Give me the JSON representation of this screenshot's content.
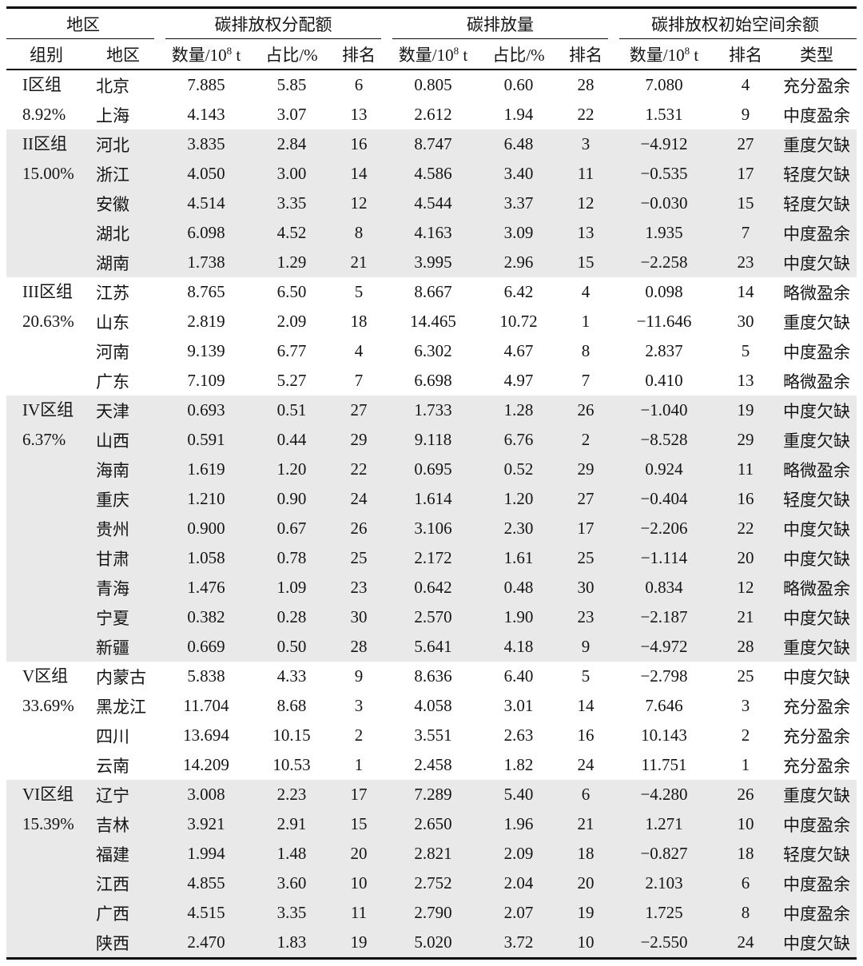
{
  "colors": {
    "band_background": "#e9e9e9",
    "rule": "#0a0a0a",
    "text": "#151515"
  },
  "header": {
    "top": {
      "region_group": "地区",
      "allocation": "碳排放权分配额",
      "emission": "碳排放量",
      "initial_space_balance": "碳排放权初始空间余额"
    },
    "sub": {
      "group": "组别",
      "region": "地区",
      "qty_prefix": "数量/10",
      "qty_sup": "8",
      "qty_unit": " t",
      "share": "占比/%",
      "rank": "排名",
      "type": "类型"
    }
  },
  "table": {
    "groups": [
      {
        "name": "I区组",
        "pct": "8.92%",
        "shaded": false,
        "rows": [
          {
            "region": "北京",
            "alloc": [
              "7.885",
              "5.85",
              "6"
            ],
            "emis": [
              "0.805",
              "0.60",
              "28"
            ],
            "balance": [
              "7.080",
              "4",
              "充分盈余"
            ]
          },
          {
            "region": "上海",
            "alloc": [
              "4.143",
              "3.07",
              "13"
            ],
            "emis": [
              "2.612",
              "1.94",
              "22"
            ],
            "balance": [
              "1.531",
              "9",
              "中度盈余"
            ]
          }
        ]
      },
      {
        "name": "II区组",
        "pct": "15.00%",
        "shaded": true,
        "rows": [
          {
            "region": "河北",
            "alloc": [
              "3.835",
              "2.84",
              "16"
            ],
            "emis": [
              "8.747",
              "6.48",
              "3"
            ],
            "balance": [
              "−4.912",
              "27",
              "重度欠缺"
            ]
          },
          {
            "region": "浙江",
            "alloc": [
              "4.050",
              "3.00",
              "14"
            ],
            "emis": [
              "4.586",
              "3.40",
              "11"
            ],
            "balance": [
              "−0.535",
              "17",
              "轻度欠缺"
            ]
          },
          {
            "region": "安徽",
            "alloc": [
              "4.514",
              "3.35",
              "12"
            ],
            "emis": [
              "4.544",
              "3.37",
              "12"
            ],
            "balance": [
              "−0.030",
              "15",
              "轻度欠缺"
            ]
          },
          {
            "region": "湖北",
            "alloc": [
              "6.098",
              "4.52",
              "8"
            ],
            "emis": [
              "4.163",
              "3.09",
              "13"
            ],
            "balance": [
              "1.935",
              "7",
              "中度盈余"
            ]
          },
          {
            "region": "湖南",
            "alloc": [
              "1.738",
              "1.29",
              "21"
            ],
            "emis": [
              "3.995",
              "2.96",
              "15"
            ],
            "balance": [
              "−2.258",
              "23",
              "中度欠缺"
            ]
          }
        ]
      },
      {
        "name": "III区组",
        "pct": "20.63%",
        "shaded": false,
        "rows": [
          {
            "region": "江苏",
            "alloc": [
              "8.765",
              "6.50",
              "5"
            ],
            "emis": [
              "8.667",
              "6.42",
              "4"
            ],
            "balance": [
              "0.098",
              "14",
              "略微盈余"
            ]
          },
          {
            "region": "山东",
            "alloc": [
              "2.819",
              "2.09",
              "18"
            ],
            "emis": [
              "14.465",
              "10.72",
              "1"
            ],
            "balance": [
              "−11.646",
              "30",
              "重度欠缺"
            ]
          },
          {
            "region": "河南",
            "alloc": [
              "9.139",
              "6.77",
              "4"
            ],
            "emis": [
              "6.302",
              "4.67",
              "8"
            ],
            "balance": [
              "2.837",
              "5",
              "中度盈余"
            ]
          },
          {
            "region": "广东",
            "alloc": [
              "7.109",
              "5.27",
              "7"
            ],
            "emis": [
              "6.698",
              "4.97",
              "7"
            ],
            "balance": [
              "0.410",
              "13",
              "略微盈余"
            ]
          }
        ]
      },
      {
        "name": "IV区组",
        "pct": "6.37%",
        "shaded": true,
        "rows": [
          {
            "region": "天津",
            "alloc": [
              "0.693",
              "0.51",
              "27"
            ],
            "emis": [
              "1.733",
              "1.28",
              "26"
            ],
            "balance": [
              "−1.040",
              "19",
              "中度欠缺"
            ]
          },
          {
            "region": "山西",
            "alloc": [
              "0.591",
              "0.44",
              "29"
            ],
            "emis": [
              "9.118",
              "6.76",
              "2"
            ],
            "balance": [
              "−8.528",
              "29",
              "重度欠缺"
            ]
          },
          {
            "region": "海南",
            "alloc": [
              "1.619",
              "1.20",
              "22"
            ],
            "emis": [
              "0.695",
              "0.52",
              "29"
            ],
            "balance": [
              "0.924",
              "11",
              "略微盈余"
            ]
          },
          {
            "region": "重庆",
            "alloc": [
              "1.210",
              "0.90",
              "24"
            ],
            "emis": [
              "1.614",
              "1.20",
              "27"
            ],
            "balance": [
              "−0.404",
              "16",
              "轻度欠缺"
            ]
          },
          {
            "region": "贵州",
            "alloc": [
              "0.900",
              "0.67",
              "26"
            ],
            "emis": [
              "3.106",
              "2.30",
              "17"
            ],
            "balance": [
              "−2.206",
              "22",
              "中度欠缺"
            ]
          },
          {
            "region": "甘肃",
            "alloc": [
              "1.058",
              "0.78",
              "25"
            ],
            "emis": [
              "2.172",
              "1.61",
              "25"
            ],
            "balance": [
              "−1.114",
              "20",
              "中度欠缺"
            ]
          },
          {
            "region": "青海",
            "alloc": [
              "1.476",
              "1.09",
              "23"
            ],
            "emis": [
              "0.642",
              "0.48",
              "30"
            ],
            "balance": [
              "0.834",
              "12",
              "略微盈余"
            ]
          },
          {
            "region": "宁夏",
            "alloc": [
              "0.382",
              "0.28",
              "30"
            ],
            "emis": [
              "2.570",
              "1.90",
              "23"
            ],
            "balance": [
              "−2.187",
              "21",
              "中度欠缺"
            ]
          },
          {
            "region": "新疆",
            "alloc": [
              "0.669",
              "0.50",
              "28"
            ],
            "emis": [
              "5.641",
              "4.18",
              "9"
            ],
            "balance": [
              "−4.972",
              "28",
              "重度欠缺"
            ]
          }
        ]
      },
      {
        "name": "V区组",
        "pct": "33.69%",
        "shaded": false,
        "rows": [
          {
            "region": "内蒙古",
            "alloc": [
              "5.838",
              "4.33",
              "9"
            ],
            "emis": [
              "8.636",
              "6.40",
              "5"
            ],
            "balance": [
              "−2.798",
              "25",
              "中度欠缺"
            ]
          },
          {
            "region": "黑龙江",
            "alloc": [
              "11.704",
              "8.68",
              "3"
            ],
            "emis": [
              "4.058",
              "3.01",
              "14"
            ],
            "balance": [
              "7.646",
              "3",
              "充分盈余"
            ]
          },
          {
            "region": "四川",
            "alloc": [
              "13.694",
              "10.15",
              "2"
            ],
            "emis": [
              "3.551",
              "2.63",
              "16"
            ],
            "balance": [
              "10.143",
              "2",
              "充分盈余"
            ]
          },
          {
            "region": "云南",
            "alloc": [
              "14.209",
              "10.53",
              "1"
            ],
            "emis": [
              "2.458",
              "1.82",
              "24"
            ],
            "balance": [
              "11.751",
              "1",
              "充分盈余"
            ]
          }
        ]
      },
      {
        "name": "VI区组",
        "pct": "15.39%",
        "shaded": true,
        "rows": [
          {
            "region": "辽宁",
            "alloc": [
              "3.008",
              "2.23",
              "17"
            ],
            "emis": [
              "7.289",
              "5.40",
              "6"
            ],
            "balance": [
              "−4.280",
              "26",
              "重度欠缺"
            ]
          },
          {
            "region": "吉林",
            "alloc": [
              "3.921",
              "2.91",
              "15"
            ],
            "emis": [
              "2.650",
              "1.96",
              "21"
            ],
            "balance": [
              "1.271",
              "10",
              "中度盈余"
            ]
          },
          {
            "region": "福建",
            "alloc": [
              "1.994",
              "1.48",
              "20"
            ],
            "emis": [
              "2.821",
              "2.09",
              "18"
            ],
            "balance": [
              "−0.827",
              "18",
              "轻度欠缺"
            ]
          },
          {
            "region": "江西",
            "alloc": [
              "4.855",
              "3.60",
              "10"
            ],
            "emis": [
              "2.752",
              "2.04",
              "20"
            ],
            "balance": [
              "2.103",
              "6",
              "中度盈余"
            ]
          },
          {
            "region": "广西",
            "alloc": [
              "4.515",
              "3.35",
              "11"
            ],
            "emis": [
              "2.790",
              "2.07",
              "19"
            ],
            "balance": [
              "1.725",
              "8",
              "中度盈余"
            ]
          },
          {
            "region": "陕西",
            "alloc": [
              "2.470",
              "1.83",
              "19"
            ],
            "emis": [
              "5.020",
              "3.72",
              "10"
            ],
            "balance": [
              "−2.550",
              "24",
              "中度欠缺"
            ]
          }
        ]
      }
    ]
  }
}
